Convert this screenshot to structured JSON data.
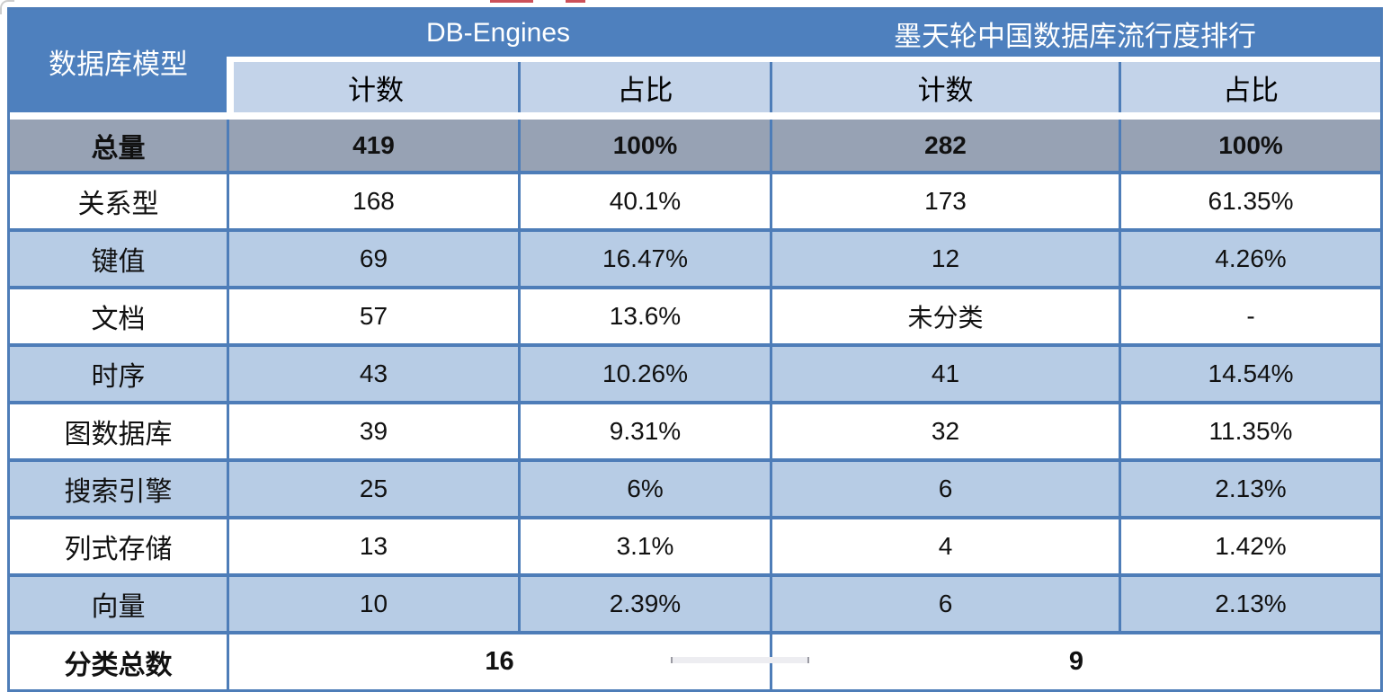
{
  "colors": {
    "header_blue": "#4E80BE",
    "subheader_blue": "#C3D3E9",
    "row_alt_blue": "#B7CCE5",
    "total_gray": "#97A2B4",
    "border_blue": "#4E7DB8",
    "red_fragment": "#CC5058"
  },
  "header": {
    "corner": "数据库模型",
    "groups": [
      {
        "label": "DB-Engines"
      },
      {
        "label": "墨天轮中国数据库流行度排行"
      }
    ],
    "sub_columns": [
      "计数",
      "占比",
      "计数",
      "占比"
    ]
  },
  "total_row": {
    "label": "总量",
    "values": [
      "419",
      "100%",
      "282",
      "100%"
    ]
  },
  "rows": [
    {
      "label": "关系型",
      "values": [
        "168",
        "40.1%",
        "173",
        "61.35%"
      ]
    },
    {
      "label": "键值",
      "values": [
        "69",
        "16.47%",
        "12",
        "4.26%"
      ]
    },
    {
      "label": "文档",
      "values": [
        "57",
        "13.6%",
        "未分类",
        "-"
      ]
    },
    {
      "label": "时序",
      "values": [
        "43",
        "10.26%",
        "41",
        "14.54%"
      ]
    },
    {
      "label": "图数据库",
      "values": [
        "39",
        "9.31%",
        "32",
        "11.35%"
      ]
    },
    {
      "label": "搜索引擎",
      "values": [
        "25",
        "6%",
        "6",
        "2.13%"
      ]
    },
    {
      "label": "列式存储",
      "values": [
        "13",
        "3.1%",
        "4",
        "1.42%"
      ]
    },
    {
      "label": "向量",
      "values": [
        "10",
        "2.39%",
        "6",
        "2.13%"
      ]
    }
  ],
  "footer_row": {
    "label": "分类总数",
    "db_engines_total": "16",
    "mo_tianlun_total": "9"
  },
  "chart_data": {
    "type": "table",
    "title": "",
    "columns": [
      "数据库模型",
      "DB-Engines 计数",
      "DB-Engines 占比",
      "墨天轮中国数据库流行度排行 计数",
      "墨天轮中国数据库流行度排行 占比"
    ],
    "rows": [
      [
        "总量",
        "419",
        "100%",
        "282",
        "100%"
      ],
      [
        "关系型",
        "168",
        "40.1%",
        "173",
        "61.35%"
      ],
      [
        "键值",
        "69",
        "16.47%",
        "12",
        "4.26%"
      ],
      [
        "文档",
        "57",
        "13.6%",
        "未分类",
        "-"
      ],
      [
        "时序",
        "43",
        "10.26%",
        "41",
        "14.54%"
      ],
      [
        "图数据库",
        "39",
        "9.31%",
        "32",
        "11.35%"
      ],
      [
        "搜索引擎",
        "25",
        "6%",
        "6",
        "2.13%"
      ],
      [
        "列式存储",
        "13",
        "3.1%",
        "4",
        "1.42%"
      ],
      [
        "向量",
        "10",
        "2.39%",
        "6",
        "2.13%"
      ],
      [
        "分类总数",
        "16",
        null,
        "9",
        null
      ]
    ],
    "layout_hints": {
      "merged_header_groups": [
        "DB-Engines spans 计数+占比",
        "墨天轮中国数据库流行度排行 spans 计数+占比"
      ],
      "merged_footer_cells": [
        "16 spans DB-Engines 计数+占比",
        "9 spans 墨天轮 计数+占比"
      ],
      "row_striping": "white / light-blue alternating, total row gray, header blue"
    }
  }
}
